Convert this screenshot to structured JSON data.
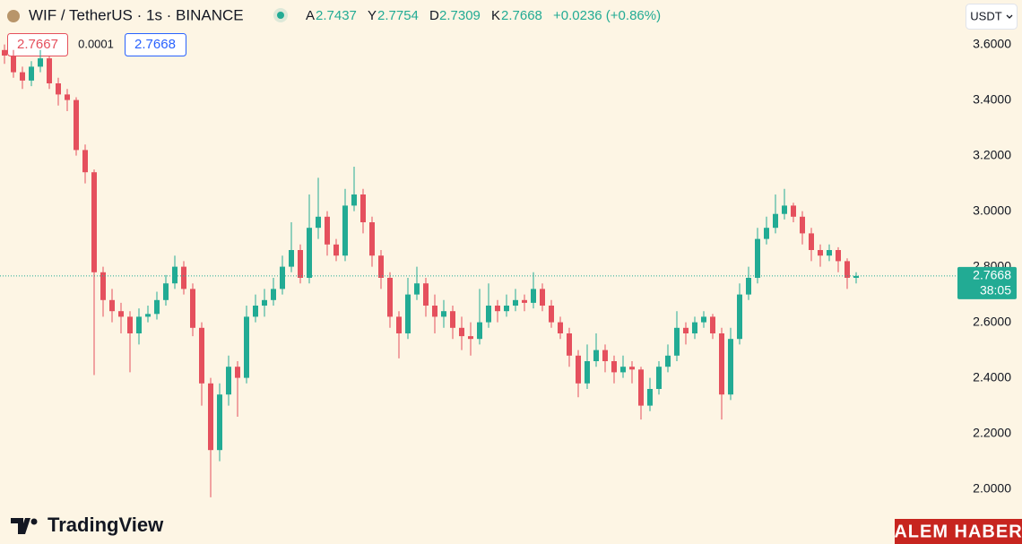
{
  "chart_data": {
    "type": "candlestick",
    "symbol": "WIF / TetherUS · 1s · BINANCE",
    "ohlc_header": [
      {
        "label": "A",
        "value": 2.7437
      },
      {
        "label": "Y",
        "value": 2.7754
      },
      {
        "label": "D",
        "value": 2.7309
      },
      {
        "label": "K",
        "value": 2.7668
      }
    ],
    "change": "+0.0236 (+0.86%)",
    "bid": 2.7667,
    "spread": 0.0001,
    "ask": 2.7668,
    "currency": "USDT",
    "current_price": 2.7668,
    "countdown": "38:05",
    "brand": "TradingView",
    "watermark": "ALEM HABER",
    "up_color": "#22ab94",
    "down_color": "#e5505d",
    "ylim": [
      1.9,
      3.76
    ],
    "yticks": [
      {
        "value": 2.0,
        "label": "2.0000"
      },
      {
        "value": 2.2,
        "label": "2.2000"
      },
      {
        "value": 2.4,
        "label": "2.4000"
      },
      {
        "value": 2.6,
        "label": "2.6000"
      },
      {
        "value": 2.8,
        "label": "2.8000"
      },
      {
        "value": 3.0,
        "label": "3.0000"
      },
      {
        "value": 3.2,
        "label": "3.2000"
      },
      {
        "value": 3.4,
        "label": "3.4000"
      },
      {
        "value": 3.6,
        "label": "3.6000"
      }
    ],
    "open": [
      3.58,
      3.56,
      3.5,
      3.47,
      3.52,
      3.55,
      3.46,
      3.42,
      3.4,
      3.22,
      3.14,
      2.78,
      2.68,
      2.64,
      2.62,
      2.56,
      2.62,
      2.63,
      2.68,
      2.74,
      2.8,
      2.72,
      2.58,
      2.38,
      2.14,
      2.34,
      2.44,
      2.4,
      2.62,
      2.66,
      2.68,
      2.72,
      2.8,
      2.86,
      2.76,
      2.94,
      2.98,
      2.88,
      2.84,
      3.02,
      3.06,
      2.96,
      2.84,
      2.76,
      2.62,
      2.56,
      2.7,
      2.74,
      2.66,
      2.62,
      2.64,
      2.58,
      2.55,
      2.54,
      2.6,
      2.66,
      2.64,
      2.66,
      2.68,
      2.67,
      2.72,
      2.66,
      2.6,
      2.56,
      2.48,
      2.38,
      2.46,
      2.5,
      2.46,
      2.42,
      2.44,
      2.43,
      2.3,
      2.36,
      2.44,
      2.48,
      2.58,
      2.56,
      2.6,
      2.62,
      2.56,
      2.34,
      2.54,
      2.7,
      2.76,
      2.9,
      2.94,
      2.99,
      3.02,
      2.98,
      2.92,
      2.86,
      2.84,
      2.86,
      2.82,
      2.76
    ],
    "high": [
      3.6,
      3.58,
      3.52,
      3.54,
      3.58,
      3.56,
      3.48,
      3.44,
      3.41,
      3.24,
      3.15,
      2.8,
      2.72,
      2.67,
      2.64,
      2.65,
      2.66,
      2.71,
      2.77,
      2.84,
      2.82,
      2.74,
      2.6,
      2.4,
      2.38,
      2.48,
      2.46,
      2.66,
      2.7,
      2.72,
      2.76,
      2.84,
      2.96,
      2.88,
      3.06,
      3.12,
      3.0,
      2.9,
      3.08,
      3.16,
      3.08,
      2.98,
      2.86,
      2.78,
      2.64,
      2.76,
      2.8,
      2.76,
      2.7,
      2.68,
      2.66,
      2.62,
      2.6,
      2.72,
      2.74,
      2.68,
      2.7,
      2.72,
      2.7,
      2.78,
      2.74,
      2.68,
      2.62,
      2.58,
      2.5,
      2.52,
      2.56,
      2.52,
      2.48,
      2.48,
      2.46,
      2.44,
      2.4,
      2.46,
      2.52,
      2.64,
      2.6,
      2.62,
      2.64,
      2.63,
      2.58,
      2.58,
      2.74,
      2.8,
      2.94,
      2.98,
      3.06,
      3.08,
      3.03,
      3.0,
      2.94,
      2.88,
      2.88,
      2.87,
      2.83,
      2.78
    ],
    "low": [
      3.53,
      3.48,
      3.44,
      3.45,
      3.5,
      3.44,
      3.38,
      3.36,
      3.2,
      3.1,
      2.41,
      2.62,
      2.6,
      2.56,
      2.42,
      2.52,
      2.6,
      2.61,
      2.66,
      2.72,
      2.7,
      2.55,
      2.3,
      1.97,
      2.1,
      2.3,
      2.26,
      2.38,
      2.6,
      2.62,
      2.66,
      2.7,
      2.78,
      2.74,
      2.74,
      2.9,
      2.84,
      2.82,
      2.82,
      3.0,
      2.92,
      2.8,
      2.72,
      2.58,
      2.47,
      2.54,
      2.68,
      2.62,
      2.56,
      2.58,
      2.54,
      2.5,
      2.48,
      2.52,
      2.58,
      2.6,
      2.62,
      2.64,
      2.64,
      2.65,
      2.64,
      2.58,
      2.54,
      2.44,
      2.33,
      2.36,
      2.44,
      2.42,
      2.38,
      2.4,
      2.38,
      2.25,
      2.28,
      2.34,
      2.42,
      2.46,
      2.52,
      2.54,
      2.58,
      2.54,
      2.25,
      2.32,
      2.52,
      2.68,
      2.74,
      2.88,
      2.92,
      2.97,
      2.96,
      2.88,
      2.82,
      2.8,
      2.82,
      2.78,
      2.72,
      2.74
    ],
    "close": [
      3.56,
      3.5,
      3.47,
      3.52,
      3.55,
      3.46,
      3.42,
      3.4,
      3.22,
      3.14,
      2.78,
      2.68,
      2.64,
      2.62,
      2.56,
      2.62,
      2.63,
      2.68,
      2.74,
      2.8,
      2.72,
      2.58,
      2.38,
      2.14,
      2.34,
      2.44,
      2.4,
      2.62,
      2.66,
      2.68,
      2.72,
      2.8,
      2.86,
      2.76,
      2.94,
      2.98,
      2.88,
      2.84,
      3.02,
      3.06,
      2.96,
      2.84,
      2.76,
      2.62,
      2.56,
      2.7,
      2.74,
      2.66,
      2.62,
      2.64,
      2.58,
      2.55,
      2.54,
      2.6,
      2.66,
      2.64,
      2.66,
      2.68,
      2.67,
      2.72,
      2.66,
      2.6,
      2.56,
      2.48,
      2.38,
      2.46,
      2.5,
      2.46,
      2.42,
      2.44,
      2.43,
      2.3,
      2.36,
      2.44,
      2.48,
      2.58,
      2.56,
      2.6,
      2.62,
      2.56,
      2.34,
      2.54,
      2.7,
      2.76,
      2.9,
      2.94,
      2.99,
      3.02,
      2.98,
      2.92,
      2.86,
      2.84,
      2.86,
      2.82,
      2.76,
      2.767
    ]
  }
}
